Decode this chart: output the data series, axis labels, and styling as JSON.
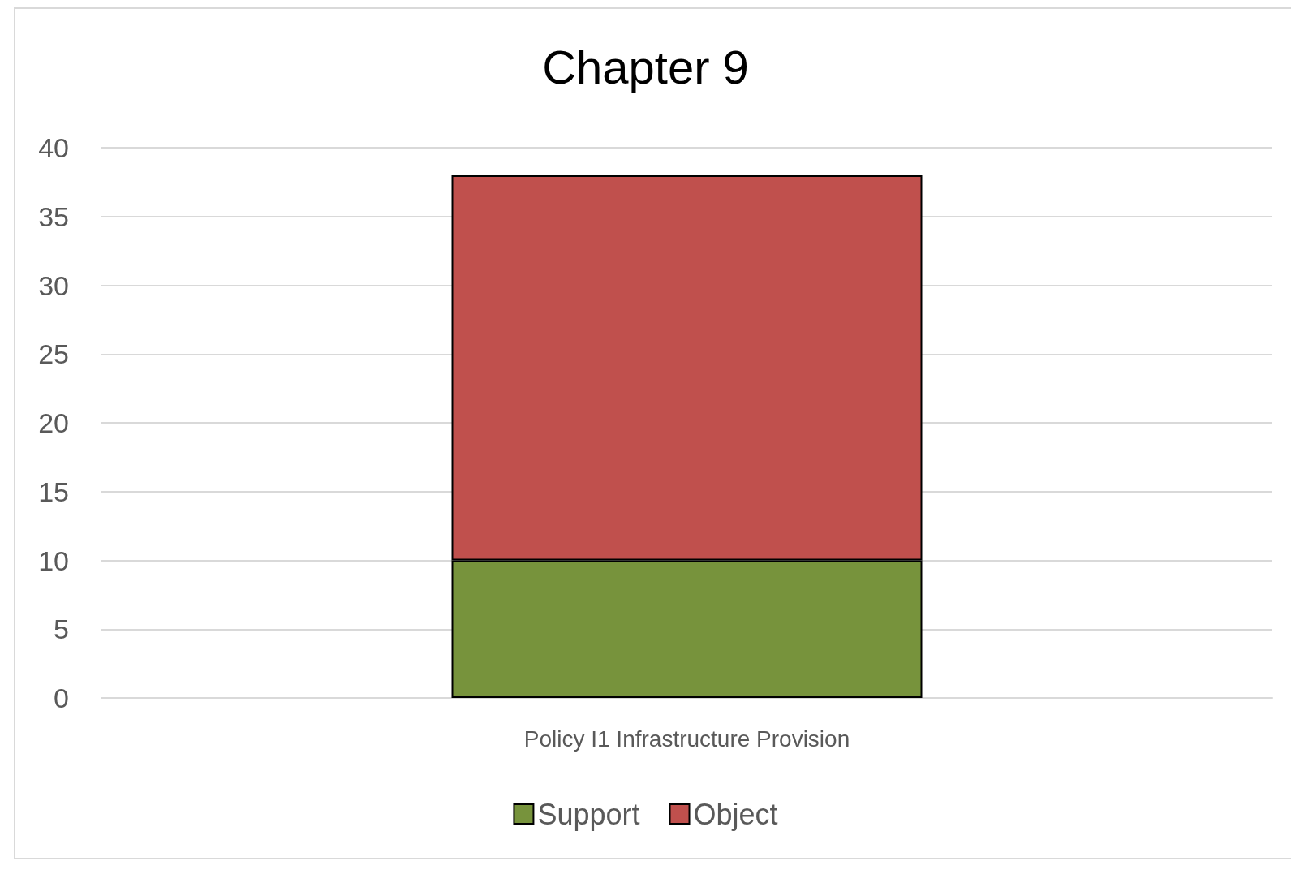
{
  "chart_data": {
    "type": "bar",
    "title": "Chapter 9",
    "categories": [
      "Policy I1 Infrastructure Provision"
    ],
    "series": [
      {
        "name": "Support",
        "color": "#77933c",
        "values": [
          10
        ]
      },
      {
        "name": "Object",
        "color": "#c0504d",
        "values": [
          28
        ]
      }
    ],
    "stacked": true,
    "ylim": [
      0,
      40
    ],
    "yticks": [
      0,
      5,
      10,
      15,
      20,
      25,
      30,
      35,
      40
    ],
    "grid": "y",
    "legend": "bottom"
  }
}
